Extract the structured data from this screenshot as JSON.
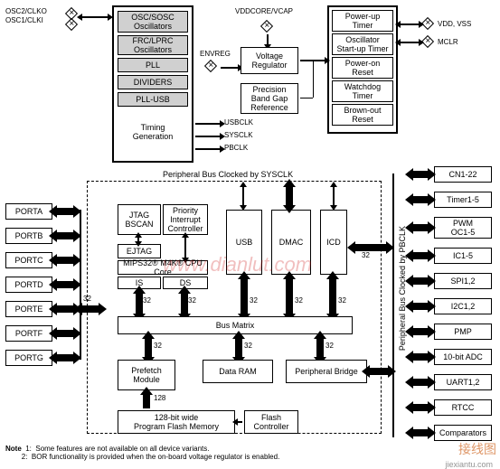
{
  "topLabels": {
    "osc2": "OSC2/CLKO",
    "osc1": "OSC1/CLKI",
    "vddcore": "VDDCORE/VCAP",
    "envreg": "ENVREG",
    "vcc": "VDD, VSS",
    "mclr": "MCLR"
  },
  "oscCol": {
    "osc": "OSC/SOSC\nOscillators",
    "frc": "FRC/LPRC\nOscillators",
    "pll": "PLL",
    "div": "DIVIDERS",
    "pllusb": "PLL-USB",
    "timing": "Timing\nGeneration"
  },
  "regCol": {
    "vreg": "Voltage\nRegulator",
    "bandgap": "Precision\nBand Gap\nReference"
  },
  "resetCol": {
    "pup": "Power-up\nTimer",
    "oscStart": "Oscillator\nStart-up Timer",
    "por": "Power-on\nReset",
    "wdt": "Watchdog\nTimer",
    "bor": "Brown-out\nReset"
  },
  "clocks": {
    "usbclk": "USBCLK",
    "sysclk": "SYSCLK",
    "pbclk": "PBCLK"
  },
  "periphHeading": "Peripheral Bus Clocked by SYSCLK",
  "ports": [
    "PORTA",
    "PORTB",
    "PORTC",
    "PORTD",
    "PORTE",
    "PORTF",
    "PORTG"
  ],
  "core": {
    "jtag": "JTAG\nBSCAN",
    "pic": "Priority\nInterrupt\nController",
    "ejtag": "EJTAG",
    "mips": "MIPS32® M4K® CPU Core",
    "is": "IS",
    "ds": "DS",
    "usb": "USB",
    "dmac": "DMAC",
    "icd": "ICD",
    "busMatrix": "Bus Matrix",
    "prefetch": "Prefetch\nModule",
    "dataram": "Data RAM",
    "pbridge": "Peripheral Bridge",
    "flash128": "128-bit wide\nProgram Flash Memory",
    "flashctl": "Flash\nController"
  },
  "busLabels": {
    "w32": "32",
    "w128": "128"
  },
  "rightPeriphs": [
    "CN1-22",
    "Timer1-5",
    "PWM\nOC1-5",
    "IC1-5",
    "SPI1,2",
    "I2C1,2",
    "PMP",
    "10-bit ADC",
    "UART1,2",
    "RTCC",
    "Comparators"
  ],
  "rightBusLabel": "Peripheral Bus Clocked by PBCLK",
  "notes": {
    "title": "Note",
    "n1": "1:",
    "n1t": "Some features are not available on all device variants.",
    "n2": "2:",
    "n2t": "BOR functionality is provided when the on-board voltage regulator is enabled."
  },
  "watermarks": {
    "w1": "www.dianlut.com",
    "w2": "接线图",
    "w3": "jiexiantu.com"
  },
  "colors": {
    "shade": "#d0d0d0"
  }
}
